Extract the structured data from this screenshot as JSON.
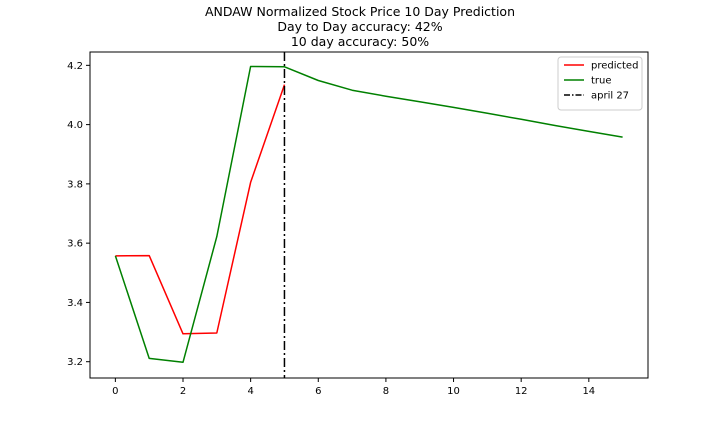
{
  "chart_data": {
    "type": "line",
    "title": "ANDAW Normalized Stock Price 10 Day Prediction",
    "subtitle_lines": [
      "Day to Day accuracy: 42%",
      "10 day accuracy: 50%"
    ],
    "xlabel": "",
    "ylabel": "",
    "xlim": [
      -0.75,
      15.75
    ],
    "ylim": [
      3.145,
      4.245
    ],
    "xticks": [
      0,
      2,
      4,
      6,
      8,
      10,
      12,
      14
    ],
    "yticks": [
      3.2,
      3.4,
      3.6,
      3.8,
      4.0,
      4.2
    ],
    "ytick_labels": [
      "3.2",
      "3.4",
      "3.6",
      "3.8",
      "4.0",
      "4.2"
    ],
    "grid": false,
    "legend_position": "top-right",
    "series": [
      {
        "name": "predicted",
        "color": "#ff0000",
        "x": [
          0,
          1,
          2,
          3,
          4,
          5
        ],
        "y": [
          3.557,
          3.558,
          3.294,
          3.297,
          3.805,
          4.135
        ]
      },
      {
        "name": "true",
        "color": "#008000",
        "x": [
          0,
          1,
          2,
          3,
          4,
          5,
          6,
          7,
          8,
          9,
          10,
          11,
          12,
          13,
          14,
          15
        ],
        "y": [
          3.557,
          3.211,
          3.198,
          3.622,
          4.196,
          4.195,
          4.149,
          4.116,
          4.096,
          4.077,
          4.058,
          4.038,
          4.018,
          3.997,
          3.977,
          3.958
        ]
      }
    ],
    "vlines": [
      {
        "name": "april 27",
        "x": 5,
        "color": "#000000",
        "style": "dashdot"
      }
    ]
  }
}
